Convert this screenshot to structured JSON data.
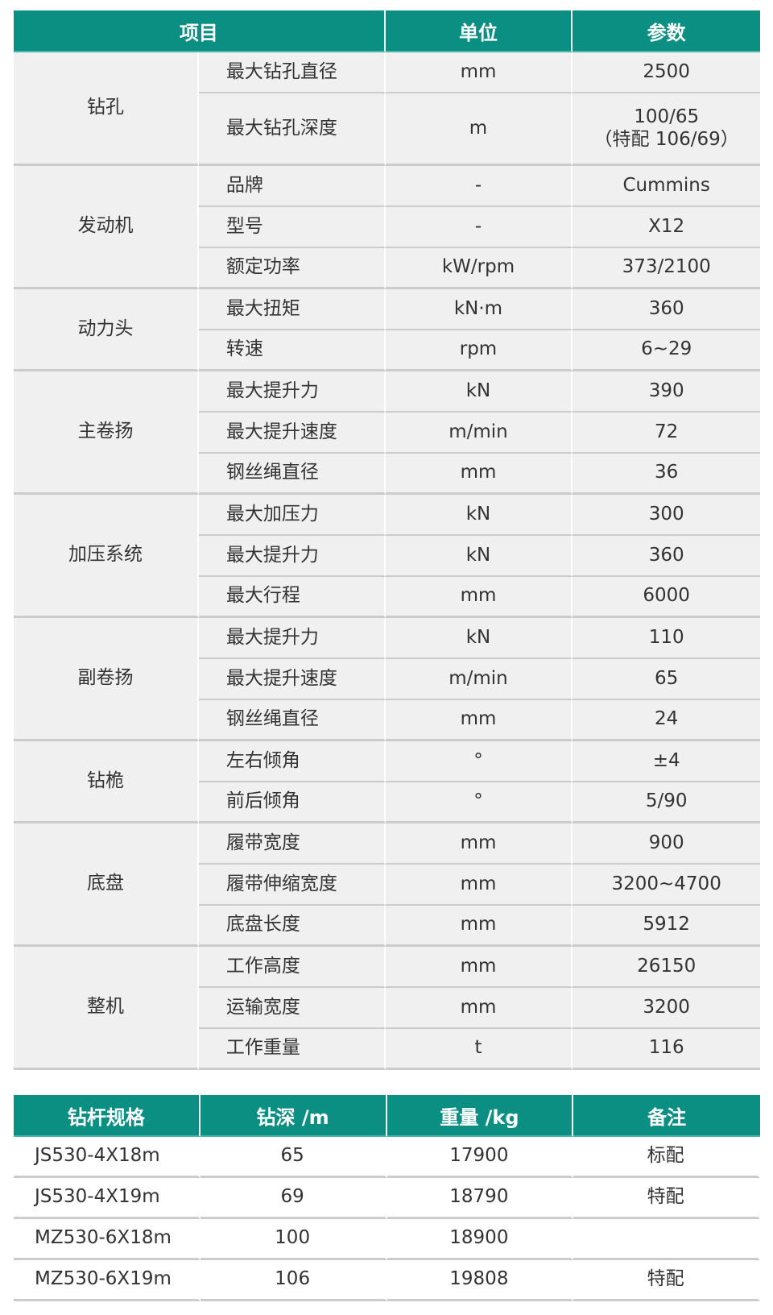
{
  "spec_table": {
    "headers": [
      "项目",
      "单位",
      "参数"
    ],
    "groups": [
      {
        "name": "钻孔",
        "rows": [
          [
            "最大钻孔直径",
            "mm",
            "2500"
          ],
          [
            "最大钻孔深度",
            "m",
            "100/65\n（特配 106/69）"
          ]
        ]
      },
      {
        "name": "发动机",
        "rows": [
          [
            "品牌",
            "-",
            "Cummins"
          ],
          [
            "型号",
            "-",
            "X12"
          ],
          [
            "额定功率",
            "kW/rpm",
            "373/2100"
          ]
        ]
      },
      {
        "name": "动力头",
        "rows": [
          [
            "最大扭矩",
            "kN·m",
            "360"
          ],
          [
            "转速",
            "rpm",
            "6~29"
          ]
        ]
      },
      {
        "name": "主卷扬",
        "rows": [
          [
            "最大提升力",
            "kN",
            "390"
          ],
          [
            "最大提升速度",
            "m/min",
            "72"
          ],
          [
            "钢丝绳直径",
            "mm",
            "36"
          ]
        ]
      },
      {
        "name": "加压系统",
        "rows": [
          [
            "最大加压力",
            "kN",
            "300"
          ],
          [
            "最大提升力",
            "kN",
            "360"
          ],
          [
            "最大行程",
            "mm",
            "6000"
          ]
        ]
      },
      {
        "name": "副卷扬",
        "rows": [
          [
            "最大提升力",
            "kN",
            "110"
          ],
          [
            "最大提升速度",
            "m/min",
            "65"
          ],
          [
            "钢丝绳直径",
            "mm",
            "24"
          ]
        ]
      },
      {
        "name": "钻桅",
        "rows": [
          [
            "左右倾角",
            "°",
            "±4"
          ],
          [
            "前后倾角",
            "°",
            "5/90"
          ]
        ]
      },
      {
        "name": "底盘",
        "rows": [
          [
            "履带宽度",
            "mm",
            "900"
          ],
          [
            "履带伸缩宽度",
            "mm",
            "3200~4700"
          ],
          [
            "底盘长度",
            "mm",
            "5912"
          ]
        ]
      },
      {
        "name": "整机",
        "rows": [
          [
            "工作高度",
            "mm",
            "26150"
          ],
          [
            "运输宽度",
            "mm",
            "3200"
          ],
          [
            "工作重量",
            "t",
            "116"
          ]
        ]
      }
    ]
  },
  "rod_table": {
    "headers": [
      "钻杆规格",
      "钻深 /m",
      "重量 /kg",
      "备注"
    ],
    "rows": [
      [
        "JS530-4X18m",
        "65",
        "17900",
        "标配"
      ],
      [
        "JS530-4X19m",
        "69",
        "18790",
        "特配"
      ],
      [
        "MZ530-6X18m",
        "100",
        "18900",
        ""
      ],
      [
        "MZ530-6X19m",
        "106",
        "19808",
        "特配"
      ]
    ]
  },
  "colors": {
    "header": "#0b8f82",
    "row_bg": "#f0f0f0",
    "divider": "#c9cbcd"
  }
}
